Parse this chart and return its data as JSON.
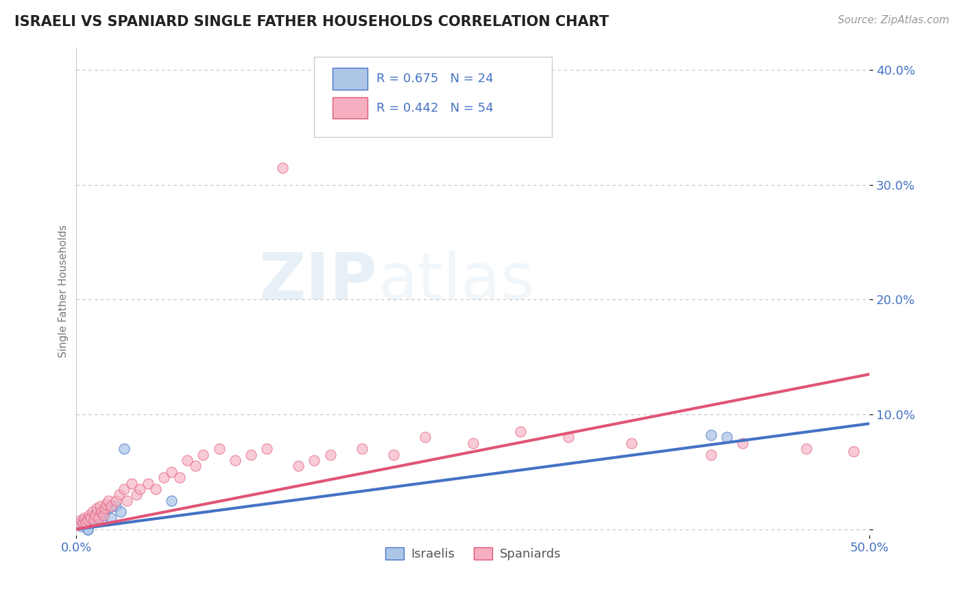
{
  "title": "ISRAELI VS SPANIARD SINGLE FATHER HOUSEHOLDS CORRELATION CHART",
  "source": "Source: ZipAtlas.com",
  "ylabel": "Single Father Households",
  "xlim": [
    0.0,
    0.5
  ],
  "ylim": [
    -0.005,
    0.42
  ],
  "yticks": [
    0.0,
    0.1,
    0.2,
    0.3,
    0.4
  ],
  "ytick_labels": [
    "",
    "10.0%",
    "20.0%",
    "30.0%",
    "40.0%"
  ],
  "israeli_R": 0.675,
  "israeli_N": 24,
  "spaniard_R": 0.442,
  "spaniard_N": 54,
  "israeli_color": "#adc6e8",
  "spaniard_color": "#f5afc0",
  "israeli_line_color": "#4472c4",
  "spaniard_line_color": "#e05575",
  "legend_label_color": "#4472c4",
  "background_color": "#ffffff",
  "israeli_x": [
    0.002,
    0.003,
    0.004,
    0.005,
    0.006,
    0.007,
    0.008,
    0.009,
    0.01,
    0.011,
    0.012,
    0.013,
    0.015,
    0.016,
    0.018,
    0.02,
    0.022,
    0.025,
    0.028,
    0.03,
    0.06,
    0.4,
    0.41,
    0.007
  ],
  "israeli_y": [
    0.005,
    0.003,
    0.007,
    0.008,
    0.005,
    0.0,
    0.01,
    0.006,
    0.008,
    0.012,
    0.01,
    0.015,
    0.012,
    0.008,
    0.015,
    0.018,
    0.01,
    0.02,
    0.015,
    0.07,
    0.025,
    0.082,
    0.08,
    0.0
  ],
  "spaniard_x": [
    0.002,
    0.003,
    0.004,
    0.005,
    0.006,
    0.007,
    0.008,
    0.009,
    0.01,
    0.011,
    0.012,
    0.013,
    0.014,
    0.015,
    0.016,
    0.017,
    0.018,
    0.019,
    0.02,
    0.022,
    0.025,
    0.027,
    0.03,
    0.032,
    0.035,
    0.038,
    0.04,
    0.045,
    0.05,
    0.055,
    0.06,
    0.065,
    0.07,
    0.075,
    0.08,
    0.09,
    0.1,
    0.11,
    0.12,
    0.13,
    0.14,
    0.15,
    0.16,
    0.18,
    0.2,
    0.22,
    0.25,
    0.28,
    0.31,
    0.35,
    0.4,
    0.42,
    0.46,
    0.49
  ],
  "spaniard_y": [
    0.005,
    0.008,
    0.005,
    0.01,
    0.006,
    0.008,
    0.012,
    0.01,
    0.015,
    0.008,
    0.012,
    0.018,
    0.01,
    0.02,
    0.015,
    0.012,
    0.018,
    0.022,
    0.025,
    0.02,
    0.025,
    0.03,
    0.035,
    0.025,
    0.04,
    0.03,
    0.035,
    0.04,
    0.035,
    0.045,
    0.05,
    0.045,
    0.06,
    0.055,
    0.065,
    0.07,
    0.06,
    0.065,
    0.07,
    0.315,
    0.055,
    0.06,
    0.065,
    0.07,
    0.065,
    0.08,
    0.075,
    0.085,
    0.08,
    0.075,
    0.065,
    0.075,
    0.07,
    0.068
  ],
  "isr_line_x0": 0.0,
  "isr_line_y0": 0.0,
  "isr_line_x1": 0.5,
  "isr_line_y1": 0.092,
  "spa_line_x0": 0.0,
  "spa_line_y0": 0.0,
  "spa_line_x1": 0.5,
  "spa_line_y1": 0.135
}
